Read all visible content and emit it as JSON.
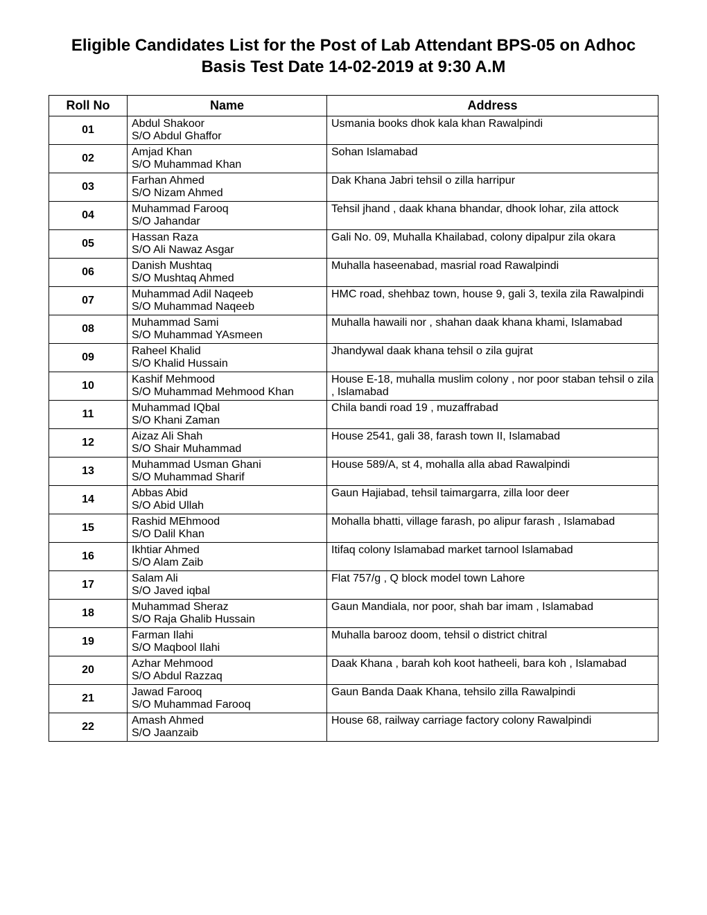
{
  "title": "Eligible Candidates List for the Post of Lab Attendant BPS-05 on Adhoc Basis Test Date 14-02-2019 at 9:30 A.M",
  "columns": [
    "Roll No",
    "Name",
    "Address"
  ],
  "rows": [
    {
      "roll": "01",
      "name": "Abdul Shakoor",
      "father": "S/O Abdul Ghaffor",
      "address": "Usmania books dhok kala khan Rawalpindi"
    },
    {
      "roll": "02",
      "name": "Amjad Khan",
      "father": "S/O Muhammad Khan",
      "address": "Sohan Islamabad"
    },
    {
      "roll": "03",
      "name": "Farhan Ahmed",
      "father": "S/O Nizam  Ahmed",
      "address": "Dak Khana Jabri tehsil o zilla harripur"
    },
    {
      "roll": "04",
      "name": "Muhammad Farooq",
      "father": "S/O Jahandar",
      "address": "Tehsil jhand , daak khana bhandar, dhook lohar, zila attock"
    },
    {
      "roll": "05",
      "name": "Hassan Raza",
      "father": "S/O Ali Nawaz Asgar",
      "address": "Gali No. 09, Muhalla Khailabad, colony dipalpur zila okara"
    },
    {
      "roll": "06",
      "name": "Danish Mushtaq",
      "father": "S/O Mushtaq Ahmed",
      "address": "Muhalla haseenabad, masrial road Rawalpindi"
    },
    {
      "roll": "07",
      "name": "Muhammad Adil Naqeeb",
      "father": "S/O Muhammad Naqeeb",
      "address": "HMC road, shehbaz town, house 9, gali 3, texila zila Rawalpindi"
    },
    {
      "roll": "08",
      "name": "Muhammad Sami",
      "father": "S/O Muhammad YAsmeen",
      "address": "Muhalla hawaili nor , shahan daak khana khami, Islamabad"
    },
    {
      "roll": "09",
      "name": "Raheel Khalid",
      "father": "S/O Khalid Hussain",
      "address": "Jhandywal daak khana tehsil o zila gujrat"
    },
    {
      "roll": "10",
      "name": "Kashif Mehmood",
      "father": "S/O Muhammad Mehmood Khan",
      "address": "House E-18, muhalla muslim colony , nor poor staban tehsil o zila , Islamabad"
    },
    {
      "roll": "11",
      "name": "Muhammad IQbal",
      "father": "S/O Khani Zaman",
      "address": "Chila bandi road 19 , muzaffrabad"
    },
    {
      "roll": "12",
      "name": "Aizaz Ali Shah",
      "father": "S/O Shair Muhammad",
      "address": "House 2541, gali 38, farash town II, Islamabad"
    },
    {
      "roll": "13",
      "name": "Muhammad Usman Ghani",
      "father": "S/O Muhammad Sharif",
      "address": "House 589/A, st 4, mohalla alla abad Rawalpindi"
    },
    {
      "roll": "14",
      "name": "Abbas Abid",
      "father": "S/O Abid Ullah",
      "address": "Gaun Hajiabad, tehsil taimargarra, zilla loor deer"
    },
    {
      "roll": "15",
      "name": "Rashid MEhmood",
      "father": "S/O Dalil Khan",
      "address": "Mohalla bhatti, village farash, po alipur farash , Islamabad"
    },
    {
      "roll": "16",
      "name": "Ikhtiar Ahmed",
      "father": "S/O Alam Zaib",
      "address": "Itifaq colony Islamabad market tarnool Islamabad"
    },
    {
      "roll": "17",
      "name": "Salam Ali",
      "father": "S/O Javed iqbal",
      "address": "Flat 757/g , Q block model town Lahore"
    },
    {
      "roll": "18",
      "name": "Muhammad Sheraz",
      "father": "S/O Raja Ghalib Hussain",
      "address": "Gaun Mandiala, nor poor, shah bar imam , Islamabad"
    },
    {
      "roll": "19",
      "name": "Farman Ilahi",
      "father": "S/O Maqbool Ilahi",
      "address": "Muhalla barooz doom, tehsil o district chitral"
    },
    {
      "roll": "20",
      "name": "Azhar Mehmood",
      "father": "S/O Abdul Razzaq",
      "address": "Daak Khana , barah koh koot hatheeli, bara koh , Islamabad"
    },
    {
      "roll": "21",
      "name": "Jawad Farooq",
      "father": "S/O Muhammad Farooq",
      "address": "Gaun Banda Daak Khana, tehsilo zilla Rawalpindi"
    },
    {
      "roll": "22",
      "name": "Amash Ahmed",
      "father": "S/O Jaanzaib",
      "address": "House 68, railway carriage factory colony Rawalpindi"
    }
  ]
}
